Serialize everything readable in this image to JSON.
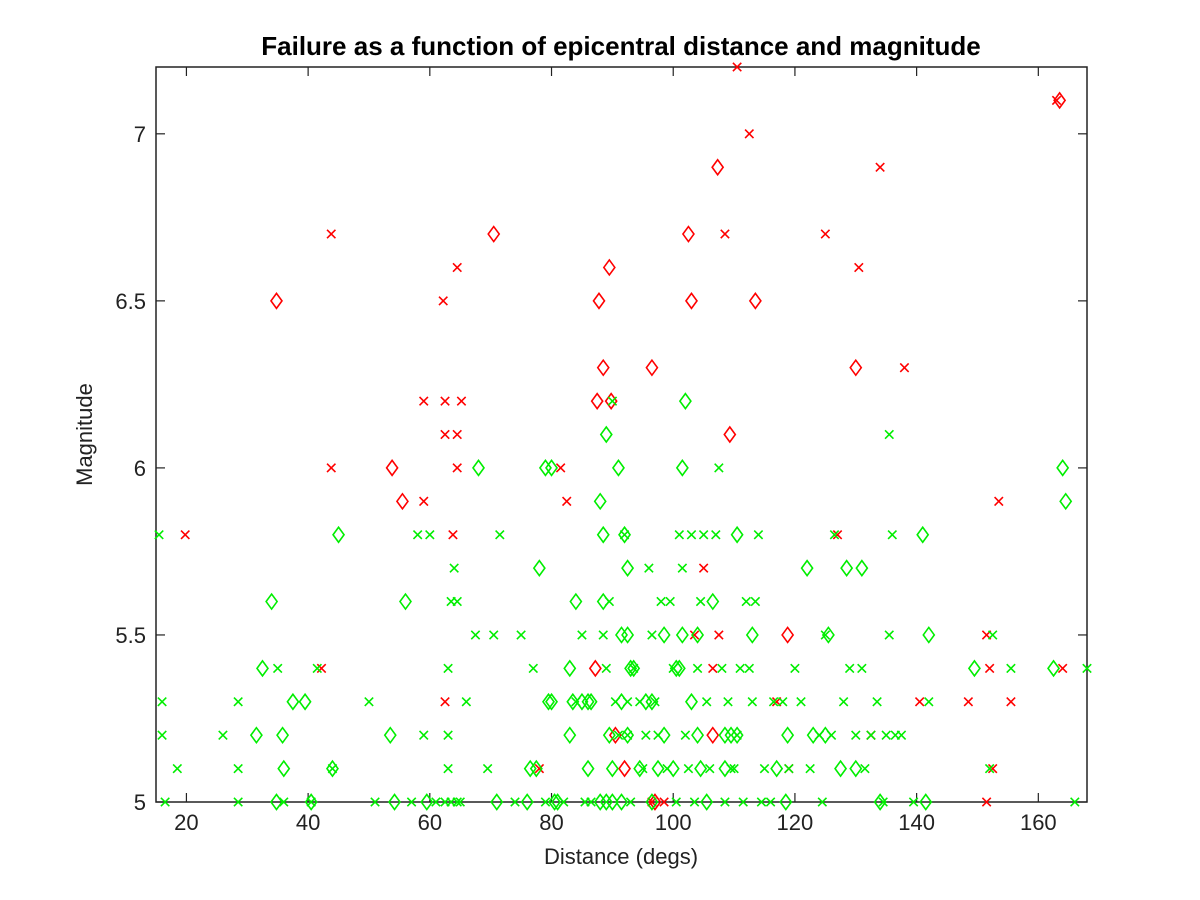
{
  "chart_data": {
    "type": "scatter",
    "title": "Failure as a function of epicentral distance and magnitude",
    "xlabel": "Distance (degs)",
    "ylabel": "Magnitude",
    "xlim": [
      15,
      168
    ],
    "ylim": [
      5,
      7.2
    ],
    "xticks": [
      20,
      40,
      60,
      80,
      100,
      120,
      140,
      160
    ],
    "yticks": [
      5,
      5.5,
      6,
      6.5,
      7
    ],
    "ytick_labels": [
      "5",
      "5.5",
      "6",
      "6.5",
      "7"
    ],
    "grid": false,
    "colors": {
      "failure": "#ff0000",
      "success": "#00ee00"
    },
    "series": [
      {
        "marker": "x",
        "color": "#ff0000",
        "points": [
          [
            19.8,
            5.8
          ],
          [
            42.2,
            5.4
          ],
          [
            43.8,
            6.7
          ],
          [
            43.8,
            6.0
          ],
          [
            59.0,
            6.2
          ],
          [
            59.0,
            5.9
          ],
          [
            62.2,
            6.5
          ],
          [
            62.5,
            6.2
          ],
          [
            62.5,
            6.1
          ],
          [
            62.5,
            5.3
          ],
          [
            63.8,
            5.8
          ],
          [
            64.5,
            6.6
          ],
          [
            64.5,
            6.1
          ],
          [
            64.5,
            6.0
          ],
          [
            65.2,
            6.2
          ],
          [
            78.0,
            5.1
          ],
          [
            81.5,
            6.0
          ],
          [
            82.5,
            5.9
          ],
          [
            96.5,
            5.0
          ],
          [
            98.5,
            5.0
          ],
          [
            103.5,
            5.5
          ],
          [
            105.0,
            5.7
          ],
          [
            106.5,
            5.4
          ],
          [
            107.5,
            5.5
          ],
          [
            108.5,
            6.7
          ],
          [
            110.5,
            7.2
          ],
          [
            112.5,
            7.0
          ],
          [
            117.0,
            5.3
          ],
          [
            119.0,
            5.1
          ],
          [
            125.0,
            6.7
          ],
          [
            127.0,
            5.8
          ],
          [
            130.5,
            6.6
          ],
          [
            132.5,
            5.2
          ],
          [
            134.0,
            6.9
          ],
          [
            138.0,
            6.3
          ],
          [
            140.5,
            5.3
          ],
          [
            148.5,
            5.3
          ],
          [
            151.5,
            5.5
          ],
          [
            151.5,
            5.0
          ],
          [
            152.0,
            5.4
          ],
          [
            152.5,
            5.1
          ],
          [
            153.5,
            5.9
          ],
          [
            155.5,
            5.3
          ],
          [
            163.0,
            7.1
          ],
          [
            164.0,
            5.4
          ]
        ]
      },
      {
        "marker": "diamond",
        "color": "#ff0000",
        "points": [
          [
            34.8,
            6.5
          ],
          [
            53.8,
            6.0
          ],
          [
            55.5,
            5.9
          ],
          [
            70.5,
            6.7
          ],
          [
            87.5,
            6.2
          ],
          [
            87.8,
            6.5
          ],
          [
            88.5,
            6.3
          ],
          [
            89.5,
            6.6
          ],
          [
            89.8,
            6.2
          ],
          [
            87.2,
            5.4
          ],
          [
            90.5,
            5.2
          ],
          [
            92.0,
            5.1
          ],
          [
            96.5,
            6.3
          ],
          [
            97.0,
            5.0
          ],
          [
            102.5,
            6.7
          ],
          [
            103.0,
            6.5
          ],
          [
            106.5,
            5.2
          ],
          [
            107.3,
            6.9
          ],
          [
            109.3,
            6.1
          ],
          [
            113.5,
            6.5
          ],
          [
            118.8,
            5.5
          ],
          [
            130.0,
            6.3
          ],
          [
            163.5,
            7.1
          ]
        ]
      },
      {
        "marker": "x",
        "color": "#00ee00",
        "points": [
          [
            15.5,
            5.8
          ],
          [
            16.0,
            5.3
          ],
          [
            16.0,
            5.2
          ],
          [
            16.5,
            5.0
          ],
          [
            18.5,
            5.1
          ],
          [
            26.0,
            5.2
          ],
          [
            28.5,
            5.3
          ],
          [
            28.5,
            5.1
          ],
          [
            28.5,
            5.0
          ],
          [
            35.0,
            5.4
          ],
          [
            36.0,
            5.0
          ],
          [
            40.5,
            5.0
          ],
          [
            41.5,
            5.4
          ],
          [
            44.0,
            5.1
          ],
          [
            50.0,
            5.3
          ],
          [
            51.0,
            5.0
          ],
          [
            57.0,
            5.0
          ],
          [
            58.0,
            5.8
          ],
          [
            59.0,
            5.2
          ],
          [
            60.0,
            5.8
          ],
          [
            61.0,
            5.0
          ],
          [
            62.5,
            5.0
          ],
          [
            63.0,
            5.4
          ],
          [
            63.0,
            5.2
          ],
          [
            63.0,
            5.1
          ],
          [
            63.5,
            5.0
          ],
          [
            63.5,
            5.6
          ],
          [
            64.0,
            5.7
          ],
          [
            64.5,
            5.6
          ],
          [
            64.5,
            5.0
          ],
          [
            65.0,
            5.0
          ],
          [
            66.0,
            5.3
          ],
          [
            67.5,
            5.5
          ],
          [
            69.5,
            5.1
          ],
          [
            70.5,
            5.5
          ],
          [
            71.5,
            5.8
          ],
          [
            74.0,
            5.0
          ],
          [
            75.0,
            5.5
          ],
          [
            77.0,
            5.4
          ],
          [
            79.0,
            5.0
          ],
          [
            82.0,
            5.0
          ],
          [
            84.0,
            5.3
          ],
          [
            85.0,
            5.5
          ],
          [
            85.5,
            5.0
          ],
          [
            86.5,
            5.0
          ],
          [
            88.5,
            5.5
          ],
          [
            89.0,
            5.4
          ],
          [
            89.5,
            5.6
          ],
          [
            90.0,
            6.2
          ],
          [
            90.5,
            5.3
          ],
          [
            91.0,
            5.2
          ],
          [
            92.0,
            5.8
          ],
          [
            92.5,
            5.3
          ],
          [
            92.5,
            5.2
          ],
          [
            93.0,
            5.0
          ],
          [
            93.5,
            5.4
          ],
          [
            94.5,
            5.3
          ],
          [
            95.0,
            5.1
          ],
          [
            95.5,
            5.2
          ],
          [
            96.0,
            5.7
          ],
          [
            96.5,
            5.5
          ],
          [
            97.0,
            5.3
          ],
          [
            97.5,
            5.2
          ],
          [
            98.0,
            5.6
          ],
          [
            99.0,
            5.1
          ],
          [
            99.5,
            5.6
          ],
          [
            100.0,
            5.4
          ],
          [
            100.5,
            5.0
          ],
          [
            101.0,
            5.8
          ],
          [
            101.5,
            5.7
          ],
          [
            102.0,
            5.2
          ],
          [
            102.5,
            5.1
          ],
          [
            103.0,
            5.8
          ],
          [
            103.5,
            5.0
          ],
          [
            104.0,
            5.4
          ],
          [
            104.5,
            5.6
          ],
          [
            105.0,
            5.8
          ],
          [
            105.5,
            5.3
          ],
          [
            106.0,
            5.1
          ],
          [
            107.0,
            5.8
          ],
          [
            107.5,
            6.0
          ],
          [
            108.0,
            5.4
          ],
          [
            108.5,
            5.0
          ],
          [
            109.0,
            5.3
          ],
          [
            109.5,
            5.1
          ],
          [
            110.0,
            5.1
          ],
          [
            110.5,
            5.2
          ],
          [
            111.0,
            5.4
          ],
          [
            111.5,
            5.0
          ],
          [
            112.0,
            5.6
          ],
          [
            112.5,
            5.4
          ],
          [
            113.0,
            5.3
          ],
          [
            113.5,
            5.6
          ],
          [
            114.0,
            5.8
          ],
          [
            114.5,
            5.0
          ],
          [
            115.0,
            5.1
          ],
          [
            116.0,
            5.0
          ],
          [
            116.5,
            5.3
          ],
          [
            118.0,
            5.3
          ],
          [
            119.0,
            5.1
          ],
          [
            120.0,
            5.4
          ],
          [
            121.0,
            5.3
          ],
          [
            122.5,
            5.1
          ],
          [
            124.0,
            5.2
          ],
          [
            124.5,
            5.0
          ],
          [
            125.0,
            5.5
          ],
          [
            126.0,
            5.2
          ],
          [
            126.5,
            5.8
          ],
          [
            128.0,
            5.3
          ],
          [
            129.0,
            5.4
          ],
          [
            130.0,
            5.2
          ],
          [
            131.0,
            5.4
          ],
          [
            131.5,
            5.1
          ],
          [
            132.5,
            5.2
          ],
          [
            133.5,
            5.3
          ],
          [
            134.5,
            5.0
          ],
          [
            135.0,
            5.2
          ],
          [
            135.5,
            5.5
          ],
          [
            135.5,
            6.1
          ],
          [
            136.0,
            5.8
          ],
          [
            136.5,
            5.2
          ],
          [
            137.5,
            5.2
          ],
          [
            139.5,
            5.0
          ],
          [
            142.0,
            5.3
          ],
          [
            152.0,
            5.1
          ],
          [
            152.5,
            5.5
          ],
          [
            155.5,
            5.4
          ],
          [
            166.0,
            5.0
          ],
          [
            168.0,
            5.4
          ]
        ]
      },
      {
        "marker": "diamond",
        "color": "#00ee00",
        "points": [
          [
            31.5,
            5.2
          ],
          [
            32.5,
            5.4
          ],
          [
            34.0,
            5.6
          ],
          [
            34.8,
            5.0
          ],
          [
            35.8,
            5.2
          ],
          [
            36.0,
            5.1
          ],
          [
            37.5,
            5.3
          ],
          [
            39.5,
            5.3
          ],
          [
            40.5,
            5.0
          ],
          [
            44.0,
            5.1
          ],
          [
            45.0,
            5.8
          ],
          [
            53.5,
            5.2
          ],
          [
            56.0,
            5.6
          ],
          [
            54.2,
            5.0
          ],
          [
            59.5,
            5.0
          ],
          [
            68.0,
            6.0
          ],
          [
            71.0,
            5.0
          ],
          [
            76.0,
            5.0
          ],
          [
            76.5,
            5.1
          ],
          [
            77.5,
            5.1
          ],
          [
            78.0,
            5.7
          ],
          [
            79.0,
            6.0
          ],
          [
            79.5,
            5.3
          ],
          [
            80.0,
            6.0
          ],
          [
            80.0,
            5.3
          ],
          [
            80.5,
            5.0
          ],
          [
            81.0,
            5.0
          ],
          [
            83.0,
            5.2
          ],
          [
            83.0,
            5.4
          ],
          [
            83.5,
            5.3
          ],
          [
            84.0,
            5.6
          ],
          [
            85.0,
            5.3
          ],
          [
            86.0,
            5.3
          ],
          [
            86.0,
            5.1
          ],
          [
            86.5,
            5.3
          ],
          [
            88.0,
            5.9
          ],
          [
            88.0,
            5.0
          ],
          [
            88.5,
            5.6
          ],
          [
            88.5,
            5.8
          ],
          [
            89.0,
            6.1
          ],
          [
            89.0,
            5.0
          ],
          [
            89.5,
            5.2
          ],
          [
            90.0,
            5.1
          ],
          [
            90.0,
            5.0
          ],
          [
            91.0,
            6.0
          ],
          [
            91.5,
            5.5
          ],
          [
            91.5,
            5.3
          ],
          [
            91.5,
            5.0
          ],
          [
            92.0,
            5.8
          ],
          [
            92.5,
            5.5
          ],
          [
            92.5,
            5.2
          ],
          [
            92.5,
            5.7
          ],
          [
            93.0,
            5.4
          ],
          [
            93.5,
            5.4
          ],
          [
            94.5,
            5.1
          ],
          [
            95.5,
            5.3
          ],
          [
            96.5,
            5.3
          ],
          [
            96.5,
            5.0
          ],
          [
            97.5,
            5.1
          ],
          [
            98.5,
            5.5
          ],
          [
            98.5,
            5.2
          ],
          [
            100.0,
            5.1
          ],
          [
            100.5,
            5.4
          ],
          [
            101.0,
            5.4
          ],
          [
            101.5,
            6.0
          ],
          [
            101.5,
            5.5
          ],
          [
            102.0,
            6.2
          ],
          [
            103.0,
            5.3
          ],
          [
            104.0,
            5.2
          ],
          [
            104.0,
            5.5
          ],
          [
            104.5,
            5.1
          ],
          [
            105.5,
            5.0
          ],
          [
            106.5,
            5.6
          ],
          [
            108.5,
            5.1
          ],
          [
            108.5,
            5.2
          ],
          [
            109.5,
            5.2
          ],
          [
            110.5,
            5.8
          ],
          [
            110.5,
            5.2
          ],
          [
            113.0,
            5.5
          ],
          [
            117.0,
            5.1
          ],
          [
            118.5,
            5.0
          ],
          [
            118.8,
            5.2
          ],
          [
            122.0,
            5.7
          ],
          [
            123.0,
            5.2
          ],
          [
            125.0,
            5.2
          ],
          [
            125.5,
            5.5
          ],
          [
            127.5,
            5.1
          ],
          [
            128.5,
            5.7
          ],
          [
            130.0,
            5.1
          ],
          [
            131.0,
            5.7
          ],
          [
            134.0,
            5.0
          ],
          [
            141.0,
            5.8
          ],
          [
            141.5,
            5.0
          ],
          [
            142.0,
            5.5
          ],
          [
            149.5,
            5.4
          ],
          [
            162.5,
            5.4
          ],
          [
            164.0,
            6.0
          ],
          [
            164.5,
            5.9
          ]
        ]
      }
    ]
  }
}
